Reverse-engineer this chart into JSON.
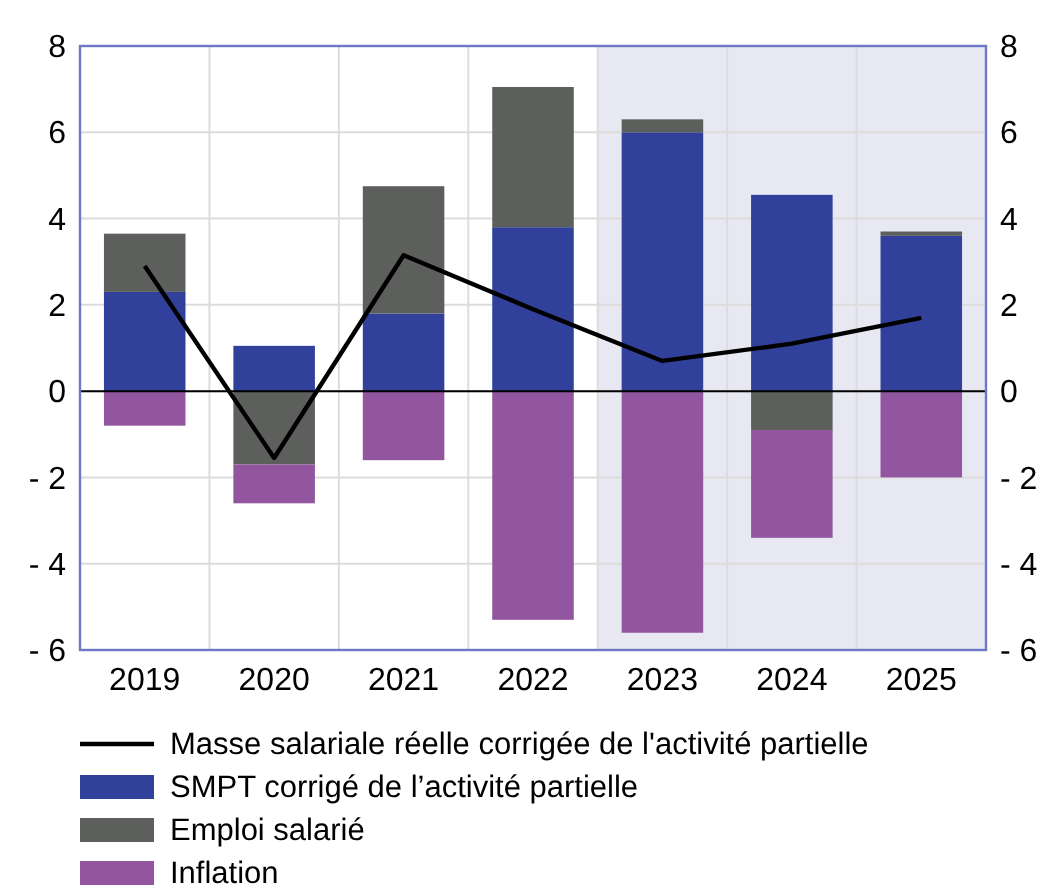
{
  "chart_data": {
    "type": "bar",
    "stacked": true,
    "categories": [
      "2019",
      "2020",
      "2021",
      "2022",
      "2023",
      "2024",
      "2025"
    ],
    "series": [
      {
        "name": "Masse salariale réelle corrigée de l'activité partielle",
        "type": "line",
        "color": "#000000",
        "values": [
          2.9,
          -1.55,
          3.15,
          1.9,
          0.7,
          1.1,
          1.7
        ]
      },
      {
        "name": "SMPT corrigé de l’activité partielle",
        "color": "#31419b",
        "values": [
          2.3,
          1.05,
          1.8,
          3.8,
          6.0,
          4.55,
          3.6
        ]
      },
      {
        "name": "Emploi salarié",
        "color": "#5d5f5c",
        "values": [
          1.35,
          -1.7,
          2.95,
          3.25,
          0.3,
          -0.9,
          0.1
        ]
      },
      {
        "name": "Inflation",
        "color": "#91569f",
        "values": [
          -0.8,
          -0.9,
          -1.6,
          -5.3,
          -5.6,
          -2.5,
          -2.0
        ]
      }
    ],
    "ylim": [
      -6,
      8
    ],
    "yticks": [
      {
        "value": -6,
        "label": "- 6"
      },
      {
        "value": -4,
        "label": "- 4"
      },
      {
        "value": -2,
        "label": "- 2"
      },
      0,
      2,
      4,
      6,
      8
    ],
    "y2lim": [
      -6,
      8
    ],
    "y2ticks": [
      {
        "value": -6,
        "label": "- 6"
      },
      {
        "value": -4,
        "label": "- 4"
      },
      {
        "value": -2,
        "label": "- 2"
      },
      0,
      2,
      4,
      6,
      8
    ],
    "bands": [
      {
        "axis": "x",
        "from": "2023",
        "to": "2025",
        "color": "#e8e8f3"
      }
    ],
    "grid": true,
    "legend": "bottom"
  }
}
